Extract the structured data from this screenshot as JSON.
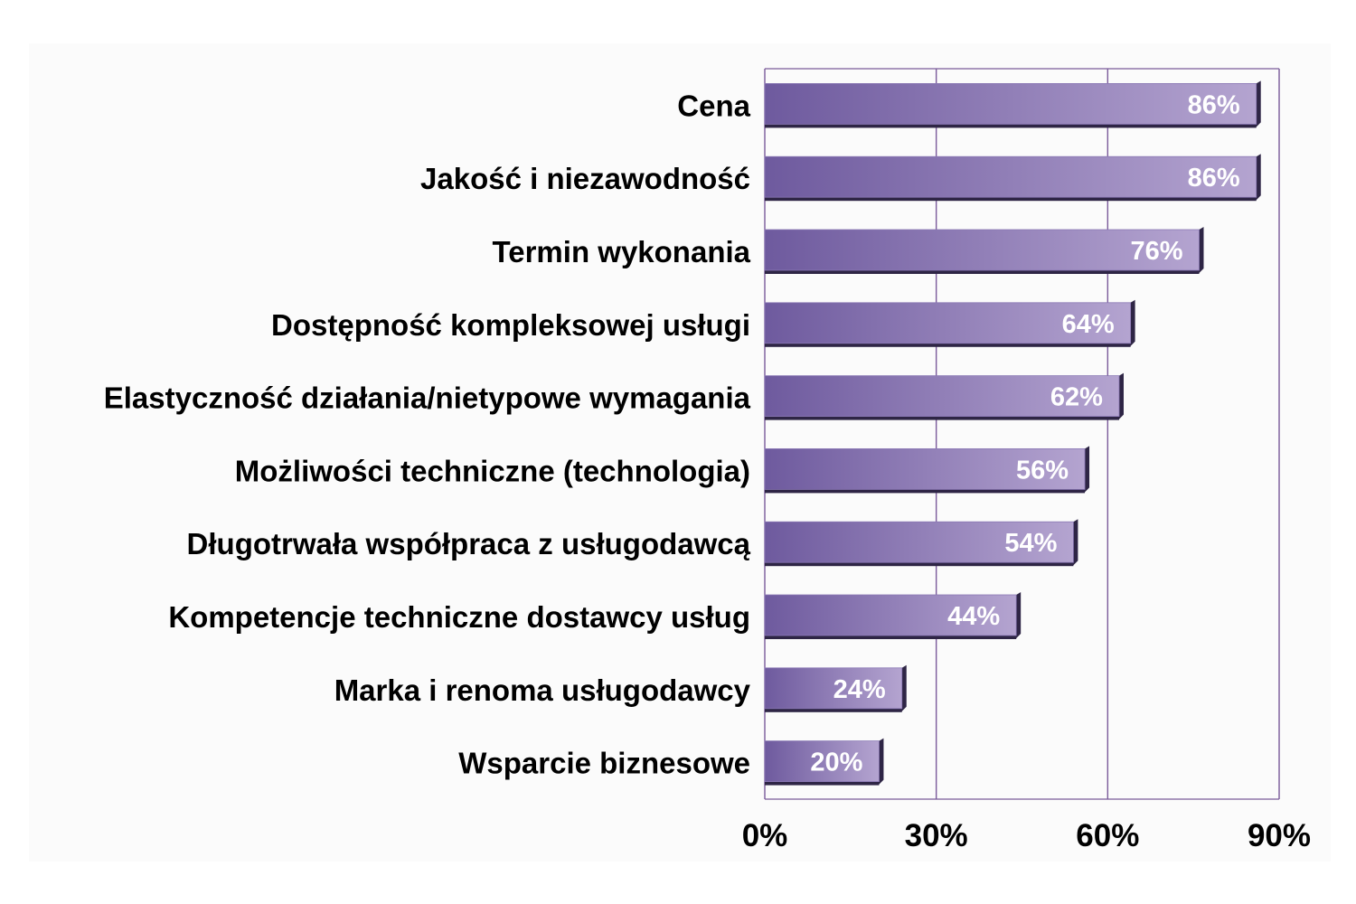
{
  "chart_data": {
    "type": "bar",
    "orientation": "horizontal",
    "title": "",
    "xlabel": "",
    "ylabel": "",
    "categories": [
      "Cena",
      "Jakość i niezawodność",
      "Termin wykonania",
      "Dostępność kompleksowej usługi",
      "Elastyczność działania/nietypowe wymagania",
      "Możliwości techniczne (technologia)",
      "Długotrwała współpraca z usługodawcą",
      "Kompetencje techniczne dostawcy usług",
      "Marka i renoma usługodawcy",
      "Wsparcie biznesowe"
    ],
    "values": [
      86,
      86,
      76,
      64,
      62,
      56,
      54,
      44,
      24,
      20
    ],
    "data_labels": [
      "86%",
      "86%",
      "76%",
      "64%",
      "62%",
      "56%",
      "54%",
      "44%",
      "24%",
      "20%"
    ],
    "xlim": [
      0,
      90
    ],
    "x_ticks": [
      0,
      30,
      60,
      90
    ],
    "x_tick_labels": [
      "0%",
      "30%",
      "60%",
      "90%"
    ],
    "grid": "vertical",
    "legend": "none",
    "colors": {
      "bar_dark": "#6e5a9e",
      "bar_light": "#b4a4d0",
      "bar_edge": "#2e2545",
      "grid": "#7a5b9a",
      "plot_bg": "#fbfbfb",
      "data_label": "#ffffff"
    }
  }
}
